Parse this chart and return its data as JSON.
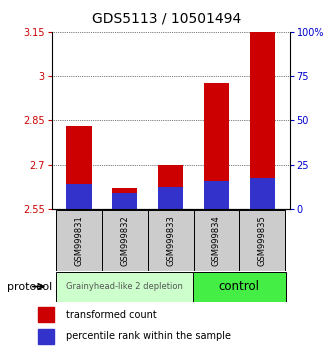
{
  "title": "GDS5113 / 10501494",
  "categories": [
    "GSM999831",
    "GSM999832",
    "GSM999833",
    "GSM999834",
    "GSM999835"
  ],
  "red_values": [
    2.83,
    2.62,
    2.7,
    2.975,
    3.22
  ],
  "blue_values": [
    2.635,
    2.605,
    2.625,
    2.645,
    2.655
  ],
  "ylim_left": [
    2.55,
    3.15
  ],
  "ylim_right": [
    0,
    100
  ],
  "yticks_left": [
    2.55,
    2.7,
    2.85,
    3.0,
    3.15
  ],
  "ytick_labels_left": [
    "2.55",
    "2.7",
    "2.85",
    "3",
    "3.15"
  ],
  "yticks_right": [
    0,
    25,
    50,
    75,
    100
  ],
  "ytick_labels_right": [
    "0",
    "25",
    "50",
    "75",
    "100%"
  ],
  "bar_width": 0.55,
  "red_color": "#CC0000",
  "blue_color": "#3333CC",
  "group1_label": "Grainyhead-like 2 depletion",
  "group2_label": "control",
  "group1_color": "#ccffcc",
  "group2_color": "#44ee44",
  "protocol_label": "protocol",
  "legend_red": "transformed count",
  "legend_blue": "percentile rank within the sample",
  "ytick_color_left": "#CC0000",
  "ytick_color_right": "#0000CC"
}
